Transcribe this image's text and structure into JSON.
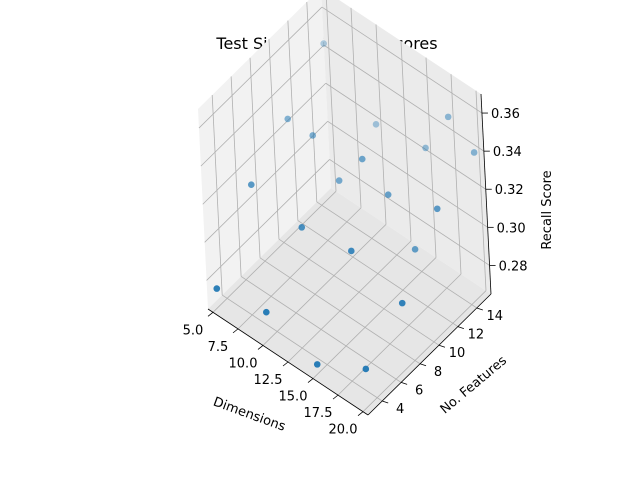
{
  "chart_data": {
    "type": "scatter",
    "title": "Test Size 0.25 Recall Scores",
    "xlabel": "Dimensions",
    "ylabel": "No. Features",
    "zlabel": "Recall Score",
    "xlim": [
      4.5,
      20.5
    ],
    "ylim": [
      2.5,
      15.5
    ],
    "zlim": [
      0.265,
      0.37
    ],
    "x_ticks": [
      "5.0",
      "7.5",
      "10.0",
      "12.5",
      "15.0",
      "17.5",
      "20.0"
    ],
    "y_ticks": [
      "4",
      "6",
      "8",
      "10",
      "12",
      "14"
    ],
    "z_ticks": [
      "0.28",
      "0.30",
      "0.32",
      "0.34",
      "0.36"
    ],
    "grid": true,
    "marker_color": "#1f77b4",
    "points": [
      {
        "x": 5,
        "y": 3,
        "z": 0.275
      },
      {
        "x": 5,
        "y": 7,
        "z": 0.31
      },
      {
        "x": 5,
        "y": 11,
        "z": 0.325
      },
      {
        "x": 5,
        "y": 15,
        "z": 0.345
      },
      {
        "x": 10,
        "y": 3,
        "z": 0.28
      },
      {
        "x": 10,
        "y": 7,
        "z": 0.305
      },
      {
        "x": 10,
        "y": 11,
        "z": 0.31
      },
      {
        "x": 10,
        "y": 15,
        "z": 0.32
      },
      {
        "x": 15,
        "y": 3,
        "z": 0.27
      },
      {
        "x": 15,
        "y": 7,
        "z": 0.31
      },
      {
        "x": 15,
        "y": 11,
        "z": 0.32
      },
      {
        "x": 15,
        "y": 15,
        "z": 0.325
      },
      {
        "x": 20,
        "y": 3,
        "z": 0.285
      },
      {
        "x": 20,
        "y": 7,
        "z": 0.3
      },
      {
        "x": 20,
        "y": 11,
        "z": 0.33
      },
      {
        "x": 20,
        "y": 15,
        "z": 0.34
      },
      {
        "x": 17.5,
        "y": 15,
        "z": 0.35
      },
      {
        "x": 12.5,
        "y": 11,
        "z": 0.33
      },
      {
        "x": 7.5,
        "y": 11,
        "z": 0.325
      },
      {
        "x": 17.5,
        "y": 11,
        "z": 0.3
      }
    ]
  }
}
